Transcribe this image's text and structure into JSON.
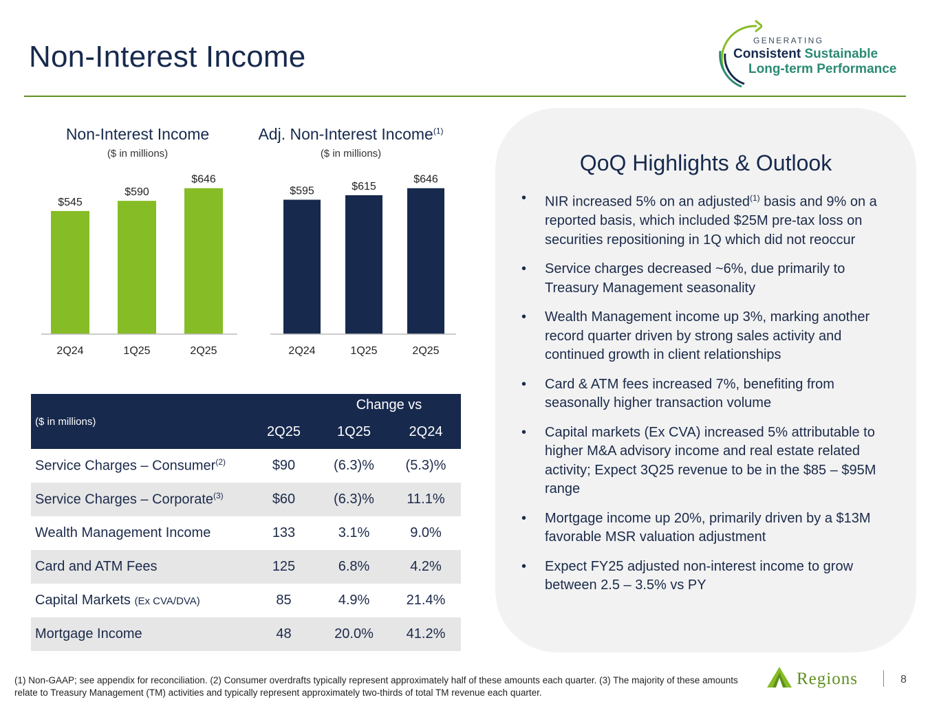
{
  "header": {
    "title": "Non-Interest Income"
  },
  "logo": {
    "generating": "GENERATING",
    "consistent": "Consistent",
    "sustainable": "Sustainable",
    "long_term": "Long-term Performance"
  },
  "chart_data": [
    {
      "type": "bar",
      "title": "Non-Interest Income",
      "subtitle": "($ in millions)",
      "categories": [
        "2Q24",
        "1Q25",
        "2Q25"
      ],
      "values": [
        545,
        590,
        646
      ],
      "data_labels": [
        "$545",
        "$590",
        "$646"
      ],
      "color": "#86bc25",
      "ylim": [
        0,
        700
      ]
    },
    {
      "type": "bar",
      "title": "Adj. Non-Interest Income",
      "title_sup": "(1)",
      "subtitle": "($ in millions)",
      "categories": [
        "2Q24",
        "1Q25",
        "2Q25"
      ],
      "values": [
        595,
        615,
        646
      ],
      "data_labels": [
        "$595",
        "$615",
        "$646"
      ],
      "color": "#17294d",
      "ylim": [
        0,
        700
      ]
    }
  ],
  "table": {
    "unit_label": "($ in millions)",
    "change_label": "Change vs",
    "col_2q25": "2Q25",
    "col_1q25": "1Q25",
    "col_2q24": "2Q24",
    "rows": [
      {
        "label": "Service Charges – Consumer",
        "sup": "(2)",
        "note": "",
        "v": "$90",
        "c1": "(6.3)%",
        "c2": "(5.3)%"
      },
      {
        "label": "Service Charges – Corporate",
        "sup": "(3)",
        "note": "",
        "v": "$60",
        "c1": "(6.3)%",
        "c2": "11.1%"
      },
      {
        "label": "Wealth Management Income",
        "sup": "",
        "note": "",
        "v": "133",
        "c1": "3.1%",
        "c2": "9.0%"
      },
      {
        "label": "Card and ATM Fees",
        "sup": "",
        "note": "",
        "v": "125",
        "c1": "6.8%",
        "c2": "4.2%"
      },
      {
        "label": "Capital Markets",
        "sup": "",
        "note": "(Ex CVA/DVA)",
        "v": "85",
        "c1": "4.9%",
        "c2": "21.4%"
      },
      {
        "label": "Mortgage Income",
        "sup": "",
        "note": "",
        "v": "48",
        "c1": "20.0%",
        "c2": "41.2%"
      }
    ]
  },
  "highlights": {
    "title": "QoQ Highlights & Outlook",
    "bullet": "•",
    "b1_pre": "NIR increased 5% on an adjusted",
    "b1_sup": "(1)",
    "b1_post": " basis and 9% on a reported basis, which included $25M pre-tax loss on securities repositioning in 1Q which did not reoccur",
    "b2": "Service charges decreased ~6%, due primarily to Treasury Management seasonality",
    "b3": "Wealth Management income up 3%, marking another record quarter driven by strong sales activity and continued growth in client relationships",
    "b4": "Card & ATM fees increased 7%, benefiting from seasonally higher transaction volume",
    "b5": "Capital markets (Ex CVA) increased 5% attributable to higher M&A advisory income and real estate related activity; Expect 3Q25 revenue to be in the $85 – $95M range",
    "b6": "Mortgage income up 20%, primarily driven by a $13M favorable MSR valuation adjustment",
    "b7": "Expect FY25 adjusted non-interest income to grow between 2.5 – 3.5% vs PY"
  },
  "footer": {
    "note": "(1)  Non-GAAP; see appendix for reconciliation. (2) Consumer overdrafts typically represent approximately half of these amounts each quarter. (3) The majority of these amounts relate to Treasury Management (TM) activities and typically represent approximately two-thirds of total TM revenue each quarter.",
    "brand": "Regions",
    "page": "8"
  }
}
